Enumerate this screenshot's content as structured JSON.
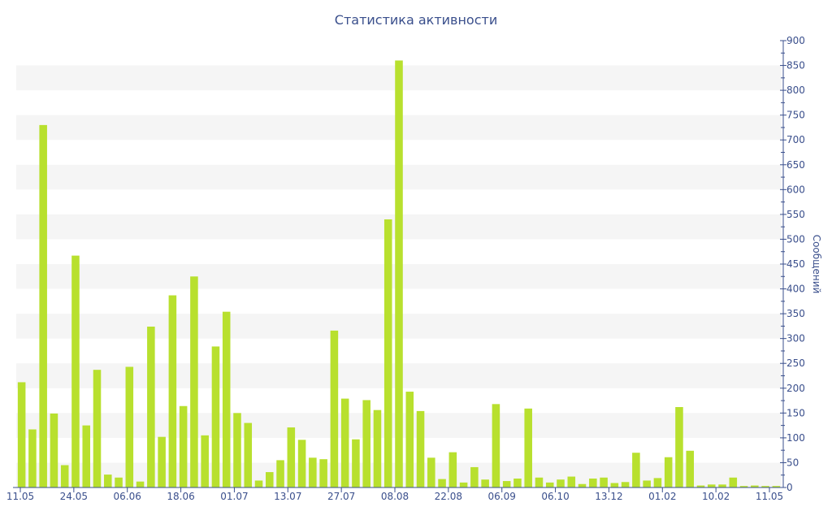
{
  "chart_data": {
    "type": "bar",
    "title": "Статистика активности",
    "xlabel": "",
    "ylabel": "Сообщений",
    "ylim": [
      0,
      900
    ],
    "y_ticks": [
      0,
      50,
      100,
      150,
      200,
      250,
      300,
      350,
      400,
      450,
      500,
      550,
      600,
      650,
      700,
      750,
      800,
      850,
      900
    ],
    "y_axis_side": "right",
    "background": "alternating horizontal bands",
    "bar_color": "#b8e02e",
    "x_tick_labels": [
      "11.05",
      "24.05",
      "06.06",
      "18.06",
      "01.07",
      "13.07",
      "27.07",
      "08.08",
      "22.08",
      "06.09",
      "06.10",
      "13.12",
      "01.02",
      "10.02",
      "11.05"
    ],
    "values": [
      212,
      117,
      730,
      149,
      45,
      467,
      125,
      237,
      26,
      20,
      243,
      12,
      324,
      102,
      387,
      164,
      425,
      105,
      284,
      354,
      150,
      130,
      14,
      31,
      55,
      121,
      96,
      60,
      57,
      316,
      179,
      97,
      176,
      156,
      540,
      860,
      193,
      154,
      60,
      17,
      71,
      10,
      41,
      16,
      168,
      13,
      18,
      159,
      20,
      10,
      16,
      22,
      7,
      18,
      20,
      9,
      11,
      70,
      14,
      19,
      61,
      162,
      74,
      4,
      6,
      6,
      20,
      3,
      4,
      3,
      3
    ]
  }
}
